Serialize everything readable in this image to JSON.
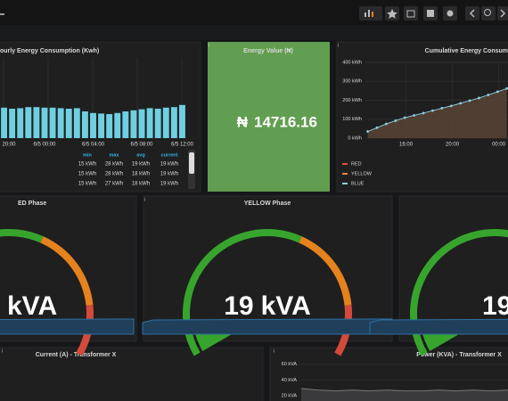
{
  "consumption": {
    "type": "bar",
    "title": "ourly Energy Consumption (Kwh)",
    "categories": [
      "20:00",
      null,
      null,
      null,
      null,
      "6/5 00:00",
      null,
      null,
      null,
      null,
      null,
      "6/5 04:00",
      null,
      null,
      null,
      null,
      null,
      "6/5 08:00",
      null,
      null,
      null,
      null,
      "6/5 12:00"
    ],
    "values": [
      57,
      55,
      56,
      58,
      58,
      57,
      57,
      56,
      55,
      56,
      50,
      47,
      46,
      45,
      47,
      50,
      52,
      54,
      56,
      55,
      57,
      58,
      62
    ],
    "color": "#6ed0e0",
    "ylim": [
      0,
      150
    ],
    "legend_table": {
      "columns": [
        "min",
        "max",
        "avg",
        "current"
      ],
      "rows": [
        [
          "15 kWh",
          "28 kWh",
          "19 kWh",
          "19 kWh"
        ],
        [
          "15 kWh",
          "28 kWh",
          "18 kWh",
          "19 kWh"
        ],
        [
          "15 kWh",
          "27 kWh",
          "18 kWh",
          "19 kWh"
        ]
      ]
    }
  },
  "energy_value": {
    "title": "Energy Value (₦)",
    "prefix": "₦",
    "value": 14716.16,
    "color": "#629e51"
  },
  "cumulative": {
    "type": "line",
    "title": "Cumulative Energy Consum",
    "x": [
      12.7,
      13.5,
      14.3,
      15.1,
      15.9,
      16.7,
      17.5,
      18.3,
      19.1,
      19.9,
      20.7,
      21.5,
      22.3,
      23.1,
      23.9,
      24.7
    ],
    "xlim": [
      12.5,
      24.8
    ],
    "xticks": [
      {
        "value": 16,
        "label": "16:00"
      },
      {
        "value": 20,
        "label": "20:00"
      },
      {
        "value": 24,
        "label": "00:00"
      }
    ],
    "ylim": [
      0,
      400
    ],
    "yticks": [
      {
        "value": 0,
        "label": "0 kWh"
      },
      {
        "value": 100,
        "label": "100 kWh"
      },
      {
        "value": 200,
        "label": "200 kWh"
      },
      {
        "value": 300,
        "label": "300 kWh"
      },
      {
        "value": 400,
        "label": "400 kWh"
      }
    ],
    "series": [
      {
        "name": "RED",
        "color": "#e24d42"
      },
      {
        "name": "YELLOW",
        "color": "#ef843c"
      },
      {
        "name": "BLUE",
        "color": "#8ccfe0",
        "values": [
          35,
          55,
          75,
          92,
          108,
          120,
          132,
          145,
          158,
          170,
          184,
          198,
          212,
          228,
          245,
          262
        ]
      }
    ]
  },
  "gauges": {
    "min": 0,
    "max": 200,
    "thresholds": [
      120,
      170
    ],
    "colors": [
      "#37a52d",
      "#e5821e",
      "#d44a3a"
    ],
    "items": [
      {
        "title": "ED Phase",
        "unit": "kVA"
      },
      {
        "title": "YELLOW Phase",
        "value": 19,
        "unit": "kVA"
      },
      {
        "value": 19
      }
    ]
  },
  "current": {
    "title": "Current (A) - Transformer X"
  },
  "power": {
    "title": "Power (KVA) - Transformer X",
    "ylim": [
      13,
      70
    ],
    "yticks": [
      {
        "value": 60,
        "label": "60 kVA"
      },
      {
        "value": 40,
        "label": "40 kVA"
      },
      {
        "value": 20,
        "label": "20 kVA"
      }
    ],
    "values": [
      29,
      27,
      26,
      27,
      26,
      27,
      26,
      26,
      27,
      26,
      27,
      26,
      27
    ]
  }
}
